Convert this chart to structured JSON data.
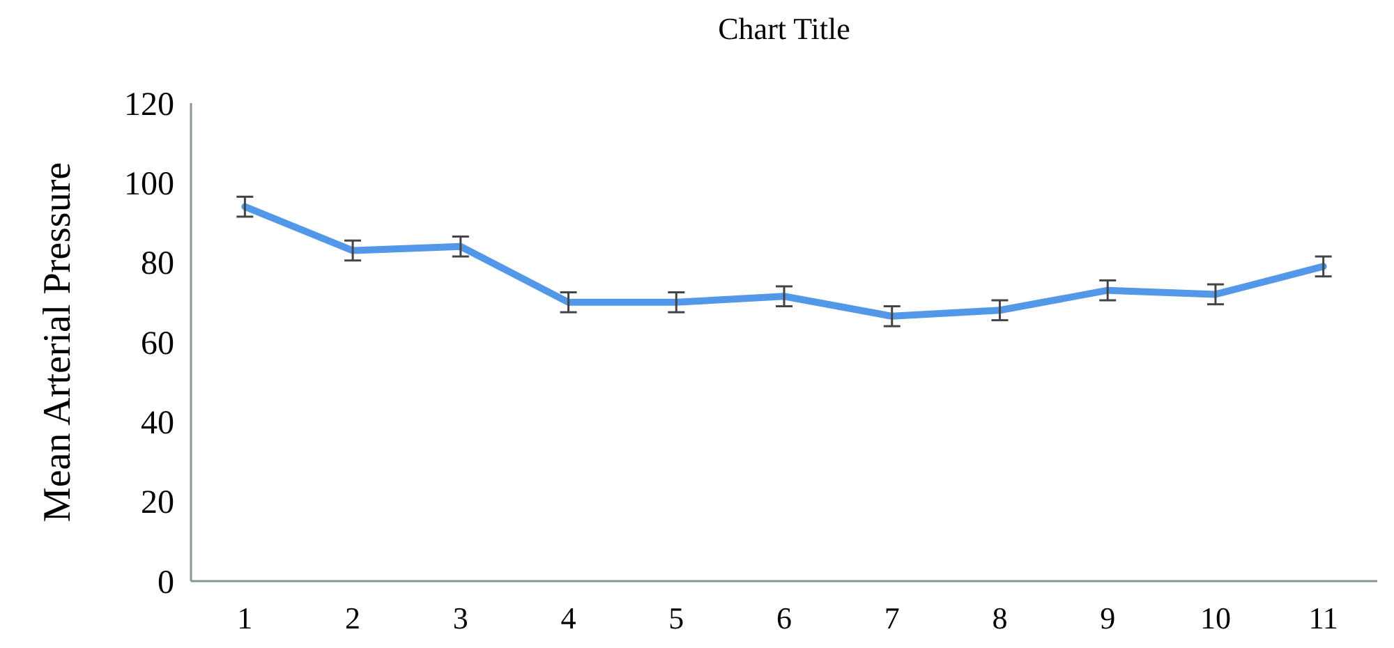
{
  "chart_data": {
    "type": "line",
    "title": "Chart Title",
    "ylabel": "Mean Arterial Pressure",
    "categories": [
      "1",
      "2",
      "3",
      "4",
      "5",
      "6",
      "7",
      "8",
      "9",
      "10",
      "11"
    ],
    "series": [
      {
        "color": "#5397e8",
        "values": [
          94,
          83,
          84,
          70,
          70,
          71.5,
          66.5,
          68,
          73,
          72,
          79
        ],
        "errors": [
          2.5,
          2.5,
          2.5,
          2.5,
          2.5,
          2.5,
          2.5,
          2.5,
          2.5,
          2.5,
          2.5
        ]
      }
    ],
    "ylim": [
      0,
      120
    ],
    "yticks": [
      0,
      20,
      40,
      60,
      80,
      100,
      120
    ],
    "grid": false,
    "marker": "none",
    "line_style": "solid"
  }
}
